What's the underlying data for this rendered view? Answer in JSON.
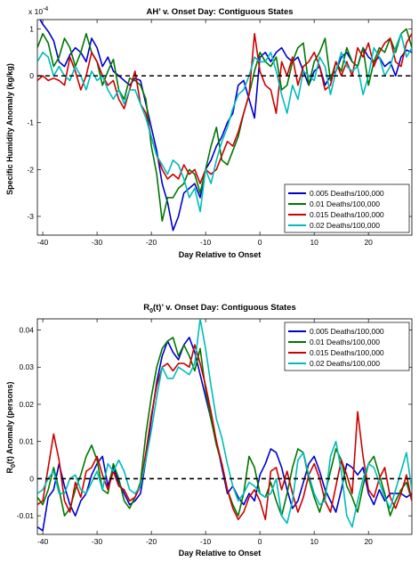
{
  "chart_data": [
    {
      "type": "line",
      "title": "AH’ v. Onset Day: Contiguous States",
      "xlabel": "Day Relative to Onset",
      "ylabel": "Specific Humidity Anomaly (kg/kg)",
      "y_exponent": "x 10",
      "y_exponent_power": "-4",
      "xlim": [
        -41,
        28
      ],
      "ylim": [
        -3.4,
        1.2
      ],
      "xticks": [
        -40,
        -30,
        -20,
        -10,
        0,
        10,
        20
      ],
      "yticks": [
        -3,
        -2,
        -1,
        0,
        1
      ],
      "legend_position": "bottom-right",
      "zero_line": "dashed black",
      "x": [
        -41,
        -40,
        -39,
        -38,
        -37,
        -36,
        -35,
        -34,
        -33,
        -32,
        -31,
        -30,
        -29,
        -28,
        -27,
        -26,
        -25,
        -24,
        -23,
        -22,
        -21,
        -20,
        -19,
        -18,
        -17,
        -16,
        -15,
        -14,
        -13,
        -12,
        -11,
        -10,
        -9,
        -8,
        -7,
        -6,
        -5,
        -4,
        -3,
        -2,
        -1,
        0,
        1,
        2,
        3,
        4,
        5,
        6,
        7,
        8,
        9,
        10,
        11,
        12,
        13,
        14,
        15,
        16,
        17,
        18,
        19,
        20,
        21,
        22,
        23,
        24,
        25,
        26,
        27,
        28
      ],
      "series": [
        {
          "name": "0.005 Deaths/100,000",
          "color": "#0000cc",
          "values": [
            1.3,
            1.1,
            0.95,
            0.75,
            0.3,
            0.2,
            0.45,
            0.6,
            0.5,
            0.3,
            0.8,
            0.6,
            0.2,
            0.4,
            0.1,
            0.0,
            -0.1,
            -0.2,
            -0.05,
            -0.1,
            -0.6,
            -1.1,
            -1.6,
            -2.3,
            -2.7,
            -3.3,
            -3.0,
            -2.5,
            -2.4,
            -2.3,
            -2.6,
            -2.0,
            -1.8,
            -1.5,
            -1.3,
            -1.0,
            -0.8,
            -0.2,
            -0.1,
            -0.5,
            -0.9,
            0.4,
            0.5,
            0.3,
            0.5,
            0.6,
            0.4,
            0.3,
            0.4,
            0.1,
            -0.2,
            0.1,
            0.2,
            -0.2,
            0.0,
            0.1,
            0.4,
            0.5,
            0.3,
            0.2,
            0.6,
            0.4,
            0.3,
            0.4,
            0.2,
            0.3,
            0.0,
            0.4,
            0.55,
            0.5
          ]
        },
        {
          "name": "0.01 Deaths/100,000",
          "color": "#007700",
          "values": [
            0.6,
            0.9,
            0.7,
            0.2,
            0.4,
            0.8,
            0.6,
            0.2,
            0.5,
            0.9,
            0.5,
            0.3,
            -0.2,
            0.1,
            0.35,
            -0.3,
            -0.5,
            -0.05,
            -0.1,
            -0.2,
            -0.5,
            -1.5,
            -2.1,
            -3.1,
            -2.6,
            -2.6,
            -2.4,
            -2.3,
            -2.0,
            -2.1,
            -2.5,
            -2.0,
            -1.5,
            -1.1,
            -1.8,
            -1.9,
            -1.6,
            -1.3,
            -0.8,
            -0.4,
            0.1,
            0.5,
            0.3,
            0.2,
            0.4,
            -0.3,
            -0.2,
            0.3,
            0.6,
            0.7,
            -0.2,
            0.3,
            0.5,
            0.8,
            -0.1,
            0.3,
            0.1,
            0.6,
            0.3,
            0.2,
            0.6,
            -0.2,
            0.3,
            0.6,
            0.5,
            0.8,
            0.5,
            0.9,
            1.0,
            0.6
          ]
        },
        {
          "name": "0.015 Deaths/100,000",
          "color": "#cc0000",
          "values": [
            -0.1,
            0.0,
            -0.1,
            -0.05,
            -0.1,
            -0.2,
            0.4,
            0.1,
            -0.3,
            0.0,
            0.5,
            0.3,
            0.0,
            -0.2,
            -0.1,
            -0.5,
            -0.7,
            -0.3,
            0.1,
            -0.6,
            -0.8,
            -1.3,
            -1.7,
            -2.0,
            -2.2,
            -2.1,
            -2.2,
            -1.9,
            -2.1,
            -2.0,
            -2.3,
            -2.0,
            -2.1,
            -2.0,
            -1.7,
            -1.4,
            -1.5,
            -1.2,
            -0.8,
            -0.4,
            0.9,
            0.1,
            -0.2,
            -0.3,
            -0.8,
            0.3,
            0.0,
            0.4,
            -0.2,
            0.2,
            0.3,
            0.5,
            0.2,
            -0.3,
            -0.2,
            0.3,
            0.0,
            0.3,
            0.0,
            0.6,
            0.4,
            0.7,
            0.2,
            0.5,
            0.7,
            0.8,
            0.3,
            0.2,
            0.7,
            0.9
          ]
        },
        {
          "name": "0.02 Deaths/100,000",
          "color": "#00bbbb",
          "values": [
            0.3,
            0.5,
            0.4,
            0.0,
            0.2,
            0.0,
            -0.1,
            0.2,
            0.0,
            -0.3,
            0.1,
            -0.1,
            0.0,
            -0.3,
            -0.5,
            -0.3,
            -0.6,
            -0.3,
            -0.3,
            -0.6,
            -0.9,
            -1.3,
            -1.7,
            -1.9,
            -2.1,
            -1.8,
            -1.9,
            -2.2,
            -2.6,
            -2.4,
            -2.9,
            -2.0,
            -2.3,
            -1.8,
            -1.4,
            -1.1,
            -0.7,
            -0.4,
            -0.3,
            0.0,
            0.4,
            0.3,
            0.3,
            0.5,
            0.1,
            -0.4,
            -0.8,
            -0.2,
            -0.5,
            0.1,
            0.0,
            -0.1,
            0.4,
            0.2,
            -0.4,
            0.1,
            0.5,
            0.2,
            0.1,
            0.2,
            -0.4,
            0.0,
            0.6,
            0.4,
            0.0,
            0.2,
            0.6,
            0.9,
            0.4,
            0.6
          ]
        }
      ]
    },
    {
      "type": "line",
      "title": "R0(t)’ v. Onset Day: Contiguous States",
      "xlabel": "Day Relative to Onset",
      "ylabel": "R0(t) Anomaly (persons)",
      "xlim": [
        -41,
        28
      ],
      "ylim": [
        -0.015,
        0.043
      ],
      "xticks": [
        -40,
        -30,
        -20,
        -10,
        0,
        10,
        20
      ],
      "yticks": [
        -0.01,
        0,
        0.01,
        0.02,
        0.03,
        0.04
      ],
      "legend_position": "top-right",
      "zero_line": "dashed black",
      "x": [
        -41,
        -40,
        -39,
        -38,
        -37,
        -36,
        -35,
        -34,
        -33,
        -32,
        -31,
        -30,
        -29,
        -28,
        -27,
        -26,
        -25,
        -24,
        -23,
        -22,
        -21,
        -20,
        -19,
        -18,
        -17,
        -16,
        -15,
        -14,
        -13,
        -12,
        -11,
        -10,
        -9,
        -8,
        -7,
        -6,
        -5,
        -4,
        -3,
        -2,
        -1,
        0,
        1,
        2,
        3,
        4,
        5,
        6,
        7,
        8,
        9,
        10,
        11,
        12,
        13,
        14,
        15,
        16,
        17,
        18,
        19,
        20,
        21,
        22,
        23,
        24,
        25,
        26,
        27,
        28
      ],
      "series": [
        {
          "name": "0.005 Deaths/100,000",
          "color": "#0000cc",
          "values": [
            -0.013,
            -0.014,
            -0.005,
            -0.003,
            0.004,
            -0.002,
            -0.007,
            -0.01,
            -0.006,
            -0.004,
            0.001,
            0.004,
            0.006,
            -0.002,
            0.003,
            -0.001,
            -0.004,
            -0.007,
            -0.006,
            -0.004,
            0.005,
            0.016,
            0.026,
            0.033,
            0.037,
            0.034,
            0.032,
            0.036,
            0.038,
            0.034,
            0.028,
            0.022,
            0.016,
            0.01,
            0.003,
            -0.004,
            -0.002,
            -0.005,
            -0.007,
            -0.004,
            -0.006,
            0.001,
            0.004,
            0.008,
            0.007,
            0.003,
            -0.003,
            -0.008,
            -0.006,
            -0.001,
            0.004,
            0.006,
            0.002,
            -0.003,
            -0.006,
            -0.009,
            -0.003,
            0.004,
            0.003,
            0.001,
            0.003,
            -0.004,
            -0.007,
            -0.003,
            -0.006,
            -0.004,
            -0.004,
            -0.004,
            -0.005,
            -0.004
          ]
        },
        {
          "name": "0.01 Deaths/100,000",
          "color": "#007700",
          "values": [
            -0.005,
            -0.007,
            -0.003,
            0.003,
            -0.003,
            -0.01,
            -0.008,
            -0.003,
            0.001,
            0.006,
            0.009,
            0.005,
            -0.003,
            -0.004,
            0.004,
            0.0,
            -0.006,
            -0.008,
            -0.005,
            -0.001,
            0.012,
            0.022,
            0.03,
            0.035,
            0.037,
            0.038,
            0.033,
            0.036,
            0.033,
            0.029,
            0.035,
            0.024,
            0.016,
            0.009,
            0.004,
            -0.003,
            -0.007,
            -0.01,
            -0.004,
            0.006,
            0.003,
            -0.004,
            -0.005,
            -0.001,
            -0.006,
            -0.01,
            -0.004,
            0.003,
            0.008,
            0.007,
            0.0,
            -0.005,
            -0.009,
            -0.004,
            0.002,
            0.008,
            0.005,
            -0.002,
            -0.005,
            -0.009,
            -0.002,
            0.004,
            0.006,
            0.001,
            -0.004,
            -0.01,
            -0.006,
            -0.003,
            -0.001,
            -0.006
          ]
        },
        {
          "name": "0.015 Deaths/100,000",
          "color": "#cc0000",
          "values": [
            -0.007,
            -0.006,
            0.003,
            0.012,
            0.005,
            -0.006,
            -0.009,
            -0.001,
            -0.005,
            0.002,
            0.003,
            0.006,
            0.001,
            -0.003,
            0.002,
            -0.002,
            -0.003,
            -0.006,
            -0.005,
            -0.002,
            0.007,
            0.017,
            0.025,
            0.03,
            0.031,
            0.029,
            0.031,
            0.031,
            0.03,
            0.036,
            0.031,
            0.025,
            0.018,
            0.01,
            0.004,
            -0.003,
            -0.008,
            -0.011,
            -0.009,
            -0.005,
            -0.003,
            -0.006,
            -0.011,
            0.002,
            0.003,
            -0.003,
            0.002,
            -0.004,
            -0.009,
            -0.005,
            0.001,
            0.004,
            0.0,
            -0.006,
            -0.009,
            -0.002,
            0.005,
            0.001,
            -0.004,
            0.018,
            0.006,
            -0.003,
            -0.005,
            0.0,
            0.003,
            -0.005,
            -0.008,
            -0.004,
            0.001,
            -0.006
          ]
        },
        {
          "name": "0.02 Deaths/100,000",
          "color": "#00bbbb",
          "values": [
            -0.004,
            -0.003,
            0.0,
            0.002,
            -0.004,
            -0.004,
            0.0,
            0.001,
            -0.003,
            -0.004,
            -0.001,
            0.002,
            -0.003,
            0.004,
            0.002,
            0.005,
            0.002,
            -0.003,
            -0.004,
            -0.002,
            0.005,
            0.013,
            0.022,
            0.03,
            0.027,
            0.027,
            0.03,
            0.029,
            0.028,
            0.031,
            0.043,
            0.035,
            0.025,
            0.016,
            0.011,
            0.004,
            -0.002,
            -0.006,
            -0.004,
            -0.001,
            -0.002,
            -0.004,
            -0.005,
            -0.004,
            0.0,
            -0.01,
            -0.012,
            -0.006,
            0.005,
            0.007,
            0.001,
            -0.004,
            -0.007,
            -0.006,
            0.006,
            0.01,
            0.002,
            -0.01,
            -0.013,
            -0.006,
            0.0,
            0.004,
            0.003,
            -0.001,
            -0.005,
            -0.008,
            -0.003,
            0.002,
            0.007,
            -0.003
          ]
        }
      ]
    }
  ]
}
